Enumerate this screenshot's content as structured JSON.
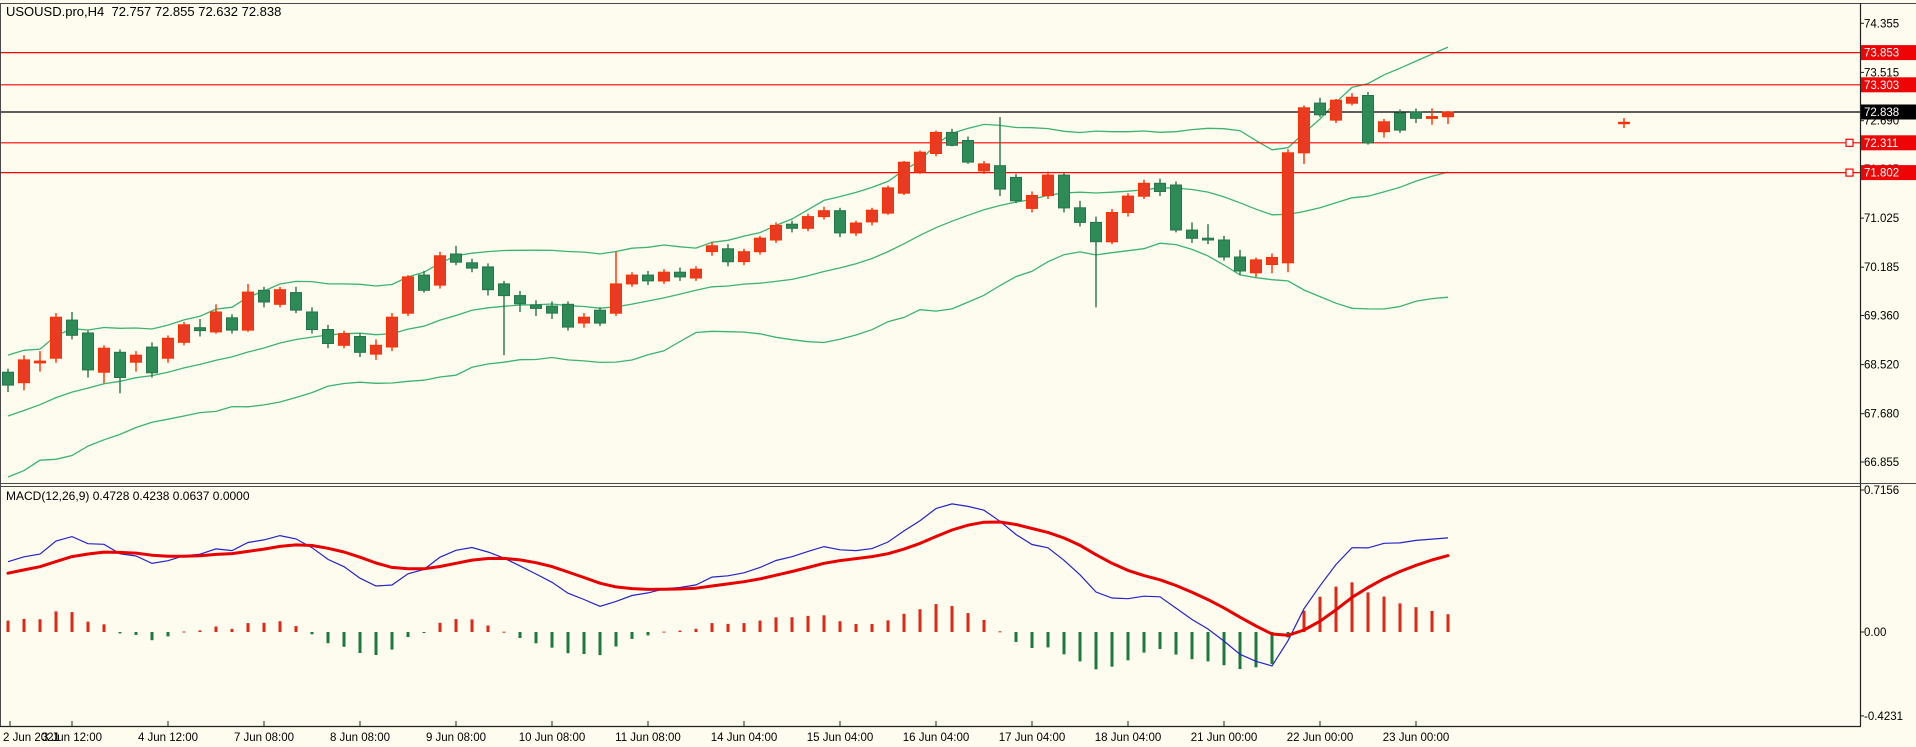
{
  "window": {
    "title": "USOUSD.pro,H4  72.757 72.855 72.632 72.838"
  },
  "indicator_label": {
    "text": "MACD(12,26,9) 0.4728 0.4238 0.0637 0.0000"
  },
  "chart_data": {
    "type": "candlestick",
    "symbol": "USOUSD.pro",
    "timeframe": "H4",
    "title": "USOUSD.pro,H4  72.757 72.855 72.632 72.838",
    "last_ohlc": {
      "open": 72.757,
      "high": 72.855,
      "low": 72.632,
      "close": 72.838
    },
    "price_ticks": [
      74.355,
      73.515,
      72.69,
      71.865,
      71.025,
      70.185,
      69.36,
      68.52,
      67.68,
      66.855
    ],
    "price_tick_labels": [
      "74.355",
      "73.515",
      "72.690",
      "71.865",
      "71.025",
      "70.185",
      "69.360",
      "68.520",
      "67.680",
      "66.855"
    ],
    "level_lines": [
      {
        "price": 73.853,
        "label": "73.853",
        "selected": false
      },
      {
        "price": 73.303,
        "label": "73.303",
        "selected": false
      },
      {
        "price": 72.311,
        "label": "72.311",
        "selected": true
      },
      {
        "price": 71.802,
        "label": "71.802",
        "selected": true
      }
    ],
    "current_price": 72.838,
    "current_price_label": "72.838",
    "time_labels": [
      "2 Jun 2021",
      "3 Jun 12:00",
      "4 Jun 12:00",
      "7 Jun 08:00",
      "8 Jun 08:00",
      "9 Jun 08:00",
      "10 Jun 08:00",
      "11 Jun 08:00",
      "14 Jun 04:00",
      "15 Jun 04:00",
      "16 Jun 04:00",
      "17 Jun 04:00",
      "18 Jun 04:00",
      "21 Jun 00:00",
      "22 Jun 00:00",
      "23 Jun 00:00"
    ],
    "bollinger": {
      "period": 20,
      "deviation": 2
    },
    "macd_params": [
      12,
      26,
      9
    ],
    "macd_values_label": "MACD(12,26,9) 0.4728 0.4238 0.0637 0.0000",
    "macd_scale": {
      "max": 0.7156,
      "zero": 0.0,
      "min": -0.4231
    },
    "macd_scale_labels": {
      "max": "0.7156",
      "zero": "0.00",
      "min": "-0.4231"
    },
    "cross_marker": {
      "index": 101,
      "price": 72.65
    },
    "candles": [
      [
        68.39,
        68.45,
        68.05,
        68.17
      ],
      [
        68.21,
        68.68,
        68.08,
        68.6
      ],
      [
        68.55,
        68.75,
        68.4,
        68.58
      ],
      [
        68.63,
        69.4,
        68.55,
        69.33
      ],
      [
        69.28,
        69.42,
        68.95,
        69.02
      ],
      [
        69.06,
        69.1,
        68.3,
        68.43
      ],
      [
        68.39,
        68.85,
        68.2,
        68.8
      ],
      [
        68.73,
        68.78,
        68.03,
        68.3
      ],
      [
        68.56,
        68.75,
        68.4,
        68.68
      ],
      [
        68.82,
        68.9,
        68.3,
        68.38
      ],
      [
        68.63,
        69.02,
        68.55,
        68.97
      ],
      [
        68.9,
        69.25,
        68.85,
        69.2
      ],
      [
        69.15,
        69.3,
        69.0,
        69.1
      ],
      [
        69.08,
        69.55,
        69.05,
        69.42
      ],
      [
        69.32,
        69.38,
        69.05,
        69.11
      ],
      [
        69.11,
        69.9,
        69.08,
        69.76
      ],
      [
        69.79,
        69.85,
        69.5,
        69.59
      ],
      [
        69.55,
        69.85,
        69.5,
        69.8
      ],
      [
        69.75,
        69.85,
        69.4,
        69.45
      ],
      [
        69.42,
        69.5,
        69.05,
        69.12
      ],
      [
        69.12,
        69.2,
        68.8,
        68.88
      ],
      [
        68.85,
        69.1,
        68.8,
        69.05
      ],
      [
        69.0,
        69.05,
        68.65,
        68.73
      ],
      [
        68.7,
        68.95,
        68.6,
        68.85
      ],
      [
        68.82,
        69.4,
        68.75,
        69.33
      ],
      [
        69.4,
        70.05,
        69.35,
        70.02
      ],
      [
        70.05,
        70.12,
        69.75,
        69.79
      ],
      [
        69.88,
        70.45,
        69.82,
        70.38
      ],
      [
        70.41,
        70.55,
        70.22,
        70.27
      ],
      [
        70.26,
        70.33,
        70.1,
        70.17
      ],
      [
        70.19,
        70.25,
        69.7,
        69.8
      ],
      [
        69.9,
        69.95,
        68.68,
        69.7
      ],
      [
        69.7,
        69.78,
        69.42,
        69.56
      ],
      [
        69.54,
        69.62,
        69.35,
        69.48
      ],
      [
        69.52,
        69.6,
        69.3,
        69.4
      ],
      [
        69.55,
        69.6,
        69.1,
        69.16
      ],
      [
        69.23,
        69.4,
        69.15,
        69.33
      ],
      [
        69.45,
        69.5,
        69.18,
        69.23
      ],
      [
        69.4,
        70.45,
        69.35,
        69.9
      ],
      [
        69.9,
        70.1,
        69.85,
        70.05
      ],
      [
        70.05,
        70.12,
        69.88,
        69.95
      ],
      [
        69.95,
        70.15,
        69.9,
        70.1
      ],
      [
        70.1,
        70.18,
        69.95,
        70.02
      ],
      [
        70.0,
        70.2,
        69.95,
        70.15
      ],
      [
        70.45,
        70.62,
        70.38,
        70.55
      ],
      [
        70.5,
        70.58,
        70.2,
        70.28
      ],
      [
        70.28,
        70.5,
        70.22,
        70.45
      ],
      [
        70.45,
        70.72,
        70.4,
        70.68
      ],
      [
        70.65,
        70.95,
        70.6,
        70.9
      ],
      [
        70.92,
        70.98,
        70.78,
        70.85
      ],
      [
        70.85,
        71.1,
        70.8,
        71.05
      ],
      [
        71.05,
        71.22,
        71.0,
        71.15
      ],
      [
        71.15,
        71.2,
        70.7,
        70.77
      ],
      [
        70.77,
        70.98,
        70.72,
        70.94
      ],
      [
        70.96,
        71.2,
        70.9,
        71.16
      ],
      [
        71.11,
        71.58,
        71.08,
        71.54
      ],
      [
        71.45,
        72.0,
        71.42,
        71.98
      ],
      [
        71.81,
        72.18,
        71.78,
        72.15
      ],
      [
        72.13,
        72.52,
        72.08,
        72.49
      ],
      [
        72.49,
        72.55,
        72.25,
        72.27
      ],
      [
        72.35,
        72.42,
        71.95,
        71.98
      ],
      [
        71.83,
        72.0,
        71.78,
        71.95
      ],
      [
        71.92,
        72.75,
        71.4,
        71.52
      ],
      [
        71.72,
        71.78,
        71.28,
        71.32
      ],
      [
        71.19,
        71.48,
        71.12,
        71.41
      ],
      [
        71.41,
        71.82,
        71.35,
        71.76
      ],
      [
        71.76,
        71.8,
        71.12,
        71.2
      ],
      [
        71.2,
        71.32,
        70.88,
        70.95
      ],
      [
        70.95,
        71.05,
        69.5,
        70.62
      ],
      [
        70.62,
        71.18,
        70.58,
        71.12
      ],
      [
        71.12,
        71.45,
        71.05,
        71.4
      ],
      [
        71.4,
        71.68,
        71.35,
        71.62
      ],
      [
        71.62,
        71.7,
        71.4,
        71.48
      ],
      [
        71.59,
        71.65,
        70.78,
        70.82
      ],
      [
        70.82,
        70.95,
        70.6,
        70.68
      ],
      [
        70.68,
        70.92,
        70.58,
        70.65
      ],
      [
        70.65,
        70.72,
        70.3,
        70.36
      ],
      [
        70.36,
        70.48,
        70.05,
        70.12
      ],
      [
        70.09,
        70.35,
        70.02,
        70.31
      ],
      [
        70.23,
        70.42,
        70.08,
        70.35
      ],
      [
        70.26,
        72.2,
        70.1,
        72.14
      ],
      [
        72.14,
        72.95,
        71.95,
        72.91
      ],
      [
        72.99,
        73.08,
        72.75,
        72.79
      ],
      [
        72.7,
        73.06,
        72.65,
        73.04
      ],
      [
        72.99,
        73.16,
        72.95,
        73.09
      ],
      [
        73.12,
        73.18,
        72.28,
        72.31
      ],
      [
        72.5,
        72.72,
        72.4,
        72.67
      ],
      [
        72.82,
        72.88,
        72.48,
        72.53
      ],
      [
        72.84,
        72.9,
        72.65,
        72.73
      ],
      [
        72.73,
        72.9,
        72.62,
        72.76
      ],
      [
        72.757,
        72.855,
        72.632,
        72.838
      ]
    ],
    "pre_series_closes": [
      67.2,
      67.4,
      67.1,
      66.8,
      66.5,
      66.2,
      65.9,
      65.65,
      65.8,
      66.1,
      66.4,
      66.7,
      66.6,
      66.9,
      67.15,
      67.05,
      67.3,
      67.5,
      67.45,
      67.65,
      67.8,
      67.75,
      67.9,
      68.0,
      67.95,
      68.1,
      68.2,
      68.1,
      68.25,
      68.3
    ]
  },
  "colors": {
    "background": "#FDFCEF",
    "bull_fill": "#E93B22",
    "bull_border": "#FF2F00",
    "bear_fill": "#2E8B57",
    "bear_border": "#25754A",
    "band": "#3CB371",
    "level_line": "#FF0000",
    "price_line": "#000000",
    "macd_line": "#2424C8",
    "signal_line": "#E80000",
    "hist_pos": "#E02818",
    "hist_neg": "#1D7A3E",
    "badge_red": "#EE0404",
    "badge_black": "#000000",
    "badge_text": "#FFFFFF",
    "axis_text": "#000000",
    "border": "#4A4A4A"
  }
}
